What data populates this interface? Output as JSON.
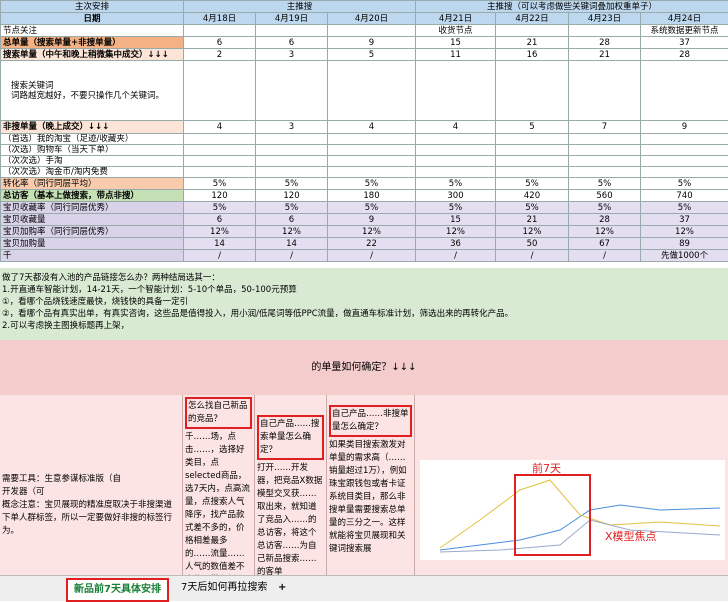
{
  "header": {
    "groups": [
      "主次安排",
      "主推搜",
      "主推搜（可以考虑做些关键词叠加权重单子）"
    ],
    "date_label": "日期",
    "dates": [
      "4月18日",
      "4月19日",
      "4月20日",
      "4月21日",
      "4月22日",
      "4月23日",
      "4月24日"
    ]
  },
  "table": {
    "rows": [
      {
        "label": "节点关注",
        "cells": [
          null,
          null,
          null,
          "收货节点",
          null,
          null,
          "系统数据更新节点"
        ]
      },
      {
        "label": "总单量（搜索单量+非搜单量）",
        "cells": [
          "6",
          "6",
          "9",
          "15",
          "21",
          "28",
          "37"
        ]
      },
      {
        "label": "搜索单量（中午和晚上稍微集中成交）↓↓↓",
        "cells": [
          "2",
          "3",
          "5",
          "11",
          "16",
          "21",
          "28"
        ]
      },
      {
        "label": "搜索关键词\n词路越宽越好，不要只操作几个关键词。"
      },
      {
        "label": "非搜单量（晚上成交）↓↓↓",
        "cells": [
          "4",
          "3",
          "4",
          "4",
          "5",
          "7",
          "9"
        ]
      },
      {
        "label": "（首选）我的淘宝（足迹/收藏夹）"
      },
      {
        "label": "（次选）购物车（当天下单）"
      },
      {
        "label": "（次次选）手淘"
      },
      {
        "label": "（次次选）淘金币/淘内免费"
      },
      {
        "label": "转化率（同行同层平均）",
        "cells": [
          "5%",
          "5%",
          "5%",
          "5%",
          "5%",
          "5%",
          "5%"
        ]
      },
      {
        "label": "总访客（基本上做搜索，带点非搜）",
        "cells": [
          "120",
          "120",
          "180",
          "300",
          "420",
          "560",
          "740"
        ]
      },
      {
        "label": "宝贝收藏率（同行同层优秀）",
        "cells": [
          "5%",
          "5%",
          "5%",
          "5%",
          "5%",
          "5%",
          "5%"
        ]
      },
      {
        "label": "宝贝收藏量",
        "cells": [
          "6",
          "6",
          "9",
          "15",
          "21",
          "28",
          "37"
        ]
      },
      {
        "label": "宝贝加购率（同行同层优秀）",
        "cells": [
          "12%",
          "12%",
          "12%",
          "12%",
          "12%",
          "12%",
          "12%"
        ]
      },
      {
        "label": "宝贝加购量",
        "cells": [
          "14",
          "14",
          "22",
          "36",
          "50",
          "67",
          "89"
        ]
      },
      {
        "label": "千",
        "cells": [
          "/",
          "/",
          "/",
          "/",
          "/",
          "/",
          "先做1000个"
        ]
      }
    ]
  },
  "notes": [
    "做了7天都没有入池的产品链接怎么办？两种结局选其一：",
    "1.开直通车智能计划，14-21天，一个智能计划：5-10个单品，50-100元预算",
    "①，看哪个品烧钱速度最快，烧钱快的具备一定引",
    "②，看哪个品有真实出单，有真实咨询，这些品是值得投入，用小润/低尾词等低PPC流量，做直通车标准计划，筛选出来的再转化产品。",
    "2.可以考虑换主图换标题再上架，"
  ],
  "section": {
    "title": "的单量如何确定？↓↓↓",
    "intro": [
      "需要工具：生意参谋标准版（自",
      "开发器（可",
      "概念注意：宝贝展现的精准度取决于非搜渠道下单人群标签，所以一定要做好非搜的标签行为。"
    ],
    "columns": [
      {
        "heading": "怎么找自己新品的竞品？",
        "text": "千……场，点击……，选择好类目，点selected商品，选7天内，点高流量，点搜索人气降序，找产品款式差不多的，价格相差最多的……流量……人气的数值差不多的，带有新品标识的，找到后点击店"
      },
      {
        "heading": "自己产品……搜索单量怎么确定？",
        "text": "打开……开发器，把竞品X数据模型交叉获……取出来，就知道了竞品入……的总访客，将这个总访客……为自己新品搜索……的客单"
      },
      {
        "heading": "自己产品……非搜单量怎么确定？",
        "text": "如果类目搜索激发对单量的需求高（……销量超过1万），例如珠宝跟钱包或者卡证系统目类目，那么非搜单量需要搜索总单量的三分之一。这样就能将宝贝展现和关键词搜索展"
      }
    ],
    "chart_labels": [
      "前7天",
      "X模型焦点"
    ]
  },
  "tabs": [
    "新品前7天具体安排",
    "7天后如何再拉搜索"
  ]
}
